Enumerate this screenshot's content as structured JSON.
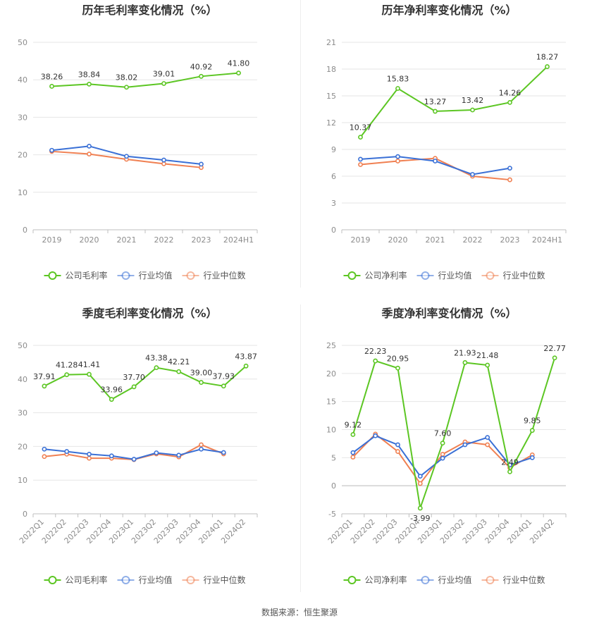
{
  "source": "数据来源：恒生聚源",
  "chart_data": [
    {
      "type": "line",
      "title": "历年毛利率变化情况（%）",
      "categories": [
        "2019",
        "2020",
        "2021",
        "2022",
        "2023",
        "2024H1"
      ],
      "ylim": [
        0,
        50
      ],
      "yticks": [
        0,
        10,
        20,
        30,
        40,
        50
      ],
      "grid": true,
      "legend_position": "bottom",
      "series": [
        {
          "name": "公司毛利率",
          "color": "#5cc623",
          "values": [
            38.26,
            38.84,
            38.02,
            39.01,
            40.92,
            41.8
          ],
          "labels": [
            "38.26",
            "38.84",
            "38.02",
            "39.01",
            "40.92",
            "41.80"
          ]
        },
        {
          "name": "行业均值",
          "color": "#3a70d6",
          "values": [
            21.2,
            22.3,
            19.6,
            18.6,
            17.5,
            null
          ]
        },
        {
          "name": "行业中位数",
          "color": "#f08052",
          "values": [
            20.9,
            20.2,
            18.8,
            17.6,
            16.6,
            null
          ]
        }
      ]
    },
    {
      "type": "line",
      "title": "历年净利率变化情况（%）",
      "categories": [
        "2019",
        "2020",
        "2021",
        "2022",
        "2023",
        "2024H1"
      ],
      "ylim": [
        0,
        21
      ],
      "yticks": [
        0,
        3,
        6,
        9,
        12,
        15,
        18,
        21
      ],
      "grid": true,
      "legend_position": "bottom",
      "series": [
        {
          "name": "公司净利率",
          "color": "#5cc623",
          "values": [
            10.37,
            15.83,
            13.27,
            13.42,
            14.26,
            18.27
          ],
          "labels": [
            "10.37",
            "15.83",
            "13.27",
            "13.42",
            "14.26",
            "18.27"
          ]
        },
        {
          "name": "行业均值",
          "color": "#3a70d6",
          "values": [
            7.9,
            8.2,
            7.7,
            6.2,
            6.9,
            null
          ]
        },
        {
          "name": "行业中位数",
          "color": "#f08052",
          "values": [
            7.3,
            7.7,
            8.0,
            6.0,
            5.6,
            null
          ]
        }
      ]
    },
    {
      "type": "line",
      "title": "季度毛利率变化情况（%）",
      "categories": [
        "2022Q1",
        "2022Q2",
        "2022Q3",
        "2022Q4",
        "2023Q1",
        "2023Q2",
        "2023Q3",
        "2023Q4",
        "2024Q1",
        "2024Q2"
      ],
      "ylim": [
        0,
        50
      ],
      "yticks": [
        0,
        10,
        20,
        30,
        40,
        50
      ],
      "grid": true,
      "legend_position": "bottom",
      "series": [
        {
          "name": "公司毛利率",
          "color": "#5cc623",
          "values": [
            37.91,
            41.28,
            41.41,
            33.96,
            37.7,
            43.38,
            42.21,
            39.0,
            37.93,
            43.87
          ],
          "labels": [
            "37.91",
            "41.28",
            "41.41",
            "33.96",
            "37.70",
            "43.38",
            "42.21",
            "39.00",
            "37.93",
            "43.87"
          ]
        },
        {
          "name": "行业均值",
          "color": "#3a70d6",
          "values": [
            19.2,
            18.5,
            17.7,
            17.2,
            16.2,
            18.1,
            17.4,
            19.2,
            18.2,
            null
          ]
        },
        {
          "name": "行业中位数",
          "color": "#f08052",
          "values": [
            17.0,
            17.7,
            16.5,
            16.5,
            16.1,
            17.8,
            16.9,
            20.5,
            17.8,
            null
          ]
        }
      ]
    },
    {
      "type": "line",
      "title": "季度净利率变化情况（%）",
      "categories": [
        "2022Q1",
        "2022Q2",
        "2022Q3",
        "2022Q4",
        "2023Q1",
        "2023Q2",
        "2023Q3",
        "2023Q4",
        "2024Q1",
        "2024Q2"
      ],
      "ylim": [
        -5,
        25
      ],
      "yticks": [
        -5,
        0,
        5,
        10,
        15,
        20,
        25
      ],
      "grid": true,
      "legend_position": "bottom",
      "series": [
        {
          "name": "公司净利率",
          "color": "#5cc623",
          "values": [
            9.12,
            22.23,
            20.95,
            -3.99,
            7.6,
            21.93,
            21.48,
            2.49,
            9.85,
            22.77
          ],
          "labels": [
            "9.12",
            "22.23",
            "20.95",
            "-3.99",
            "7.60",
            "21.93",
            "21.48",
            "2.49",
            "9.85",
            "22.77"
          ]
        },
        {
          "name": "行业均值",
          "color": "#3a70d6",
          "values": [
            5.9,
            8.9,
            7.3,
            1.7,
            4.9,
            7.3,
            8.6,
            3.7,
            5.0,
            null
          ]
        },
        {
          "name": "行业中位数",
          "color": "#f08052",
          "values": [
            5.1,
            9.2,
            6.1,
            0.4,
            5.6,
            7.8,
            7.3,
            3.2,
            5.5,
            null
          ]
        }
      ]
    }
  ]
}
